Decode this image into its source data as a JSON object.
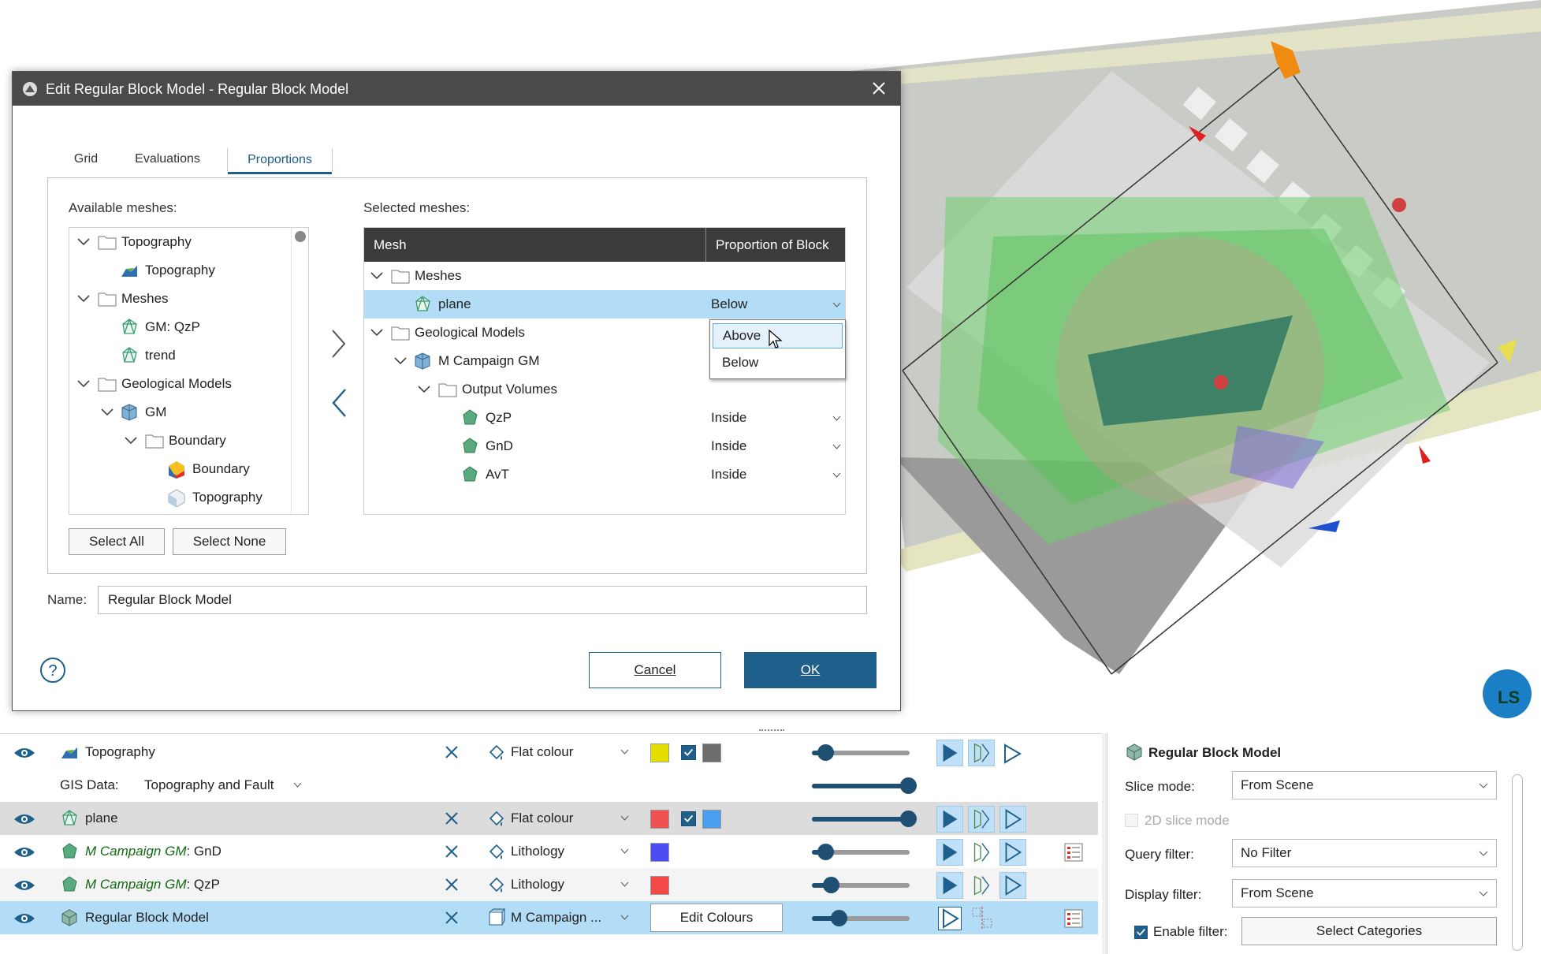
{
  "dialog": {
    "title": "Edit Regular Block Model - Regular Block Model",
    "tabs": [
      {
        "label": "Grid"
      },
      {
        "label": "Evaluations"
      },
      {
        "label": "Proportions"
      }
    ],
    "available_label": "Available meshes:",
    "available_tree": [
      {
        "label": "Topography",
        "icon": "folder-icon",
        "expanded": true
      },
      {
        "label": "Topography",
        "icon": "topography-surface-icon"
      },
      {
        "label": "Meshes",
        "icon": "folder-icon",
        "expanded": true
      },
      {
        "label": "GM: QzP",
        "icon": "mesh-icon"
      },
      {
        "label": "trend",
        "icon": "mesh-icon"
      },
      {
        "label": "Geological Models",
        "icon": "folder-icon",
        "expanded": true
      },
      {
        "label": "GM",
        "icon": "geological-model-icon",
        "expanded": true
      },
      {
        "label": "Boundary",
        "icon": "folder-icon",
        "expanded": true
      },
      {
        "label": "Boundary",
        "icon": "boundary-surface-icon"
      },
      {
        "label": "Topography",
        "icon": "topography-boundary-icon"
      }
    ],
    "select_all": "Select All",
    "select_none": "Select None",
    "selected_label": "Selected meshes:",
    "selected_header": {
      "mesh": "Mesh",
      "proportion": "Proportion of Block"
    },
    "selected_tree": [
      {
        "label": "Meshes",
        "icon": "folder-icon",
        "proportion": ""
      },
      {
        "label": "plane",
        "icon": "mesh-icon",
        "proportion": "Below"
      },
      {
        "label": "Geological Models",
        "icon": "folder-icon",
        "proportion": ""
      },
      {
        "label": "M Campaign GM",
        "icon": "geological-model-icon",
        "proportion": ""
      },
      {
        "label": "Output Volumes",
        "icon": "folder-icon",
        "proportion": ""
      },
      {
        "label": "QzP",
        "icon": "volume-icon",
        "proportion": "Inside"
      },
      {
        "label": "GnD",
        "icon": "volume-icon",
        "proportion": "Inside"
      },
      {
        "label": "AvT",
        "icon": "volume-icon",
        "proportion": "Inside"
      }
    ],
    "dropdown_options": [
      "Above",
      "Below"
    ],
    "name_label": "Name:",
    "name_value": "Regular Block Model",
    "cancel": "Cancel",
    "ok": "OK"
  },
  "shapes_list": [
    {
      "name": "Topography",
      "style": "Flat colour",
      "colour": "#e5dc00",
      "colour2": "#6d6d6d",
      "checked": true,
      "opacity": 0.14
    },
    {
      "gis_label": "GIS Data:",
      "gis_value": "Topography and Fault",
      "opacity": 1.0
    },
    {
      "name": "plane",
      "style": "Flat colour",
      "colour": "#f05252",
      "colour2": "#4a9ff0",
      "checked": true,
      "opacity": 1.0
    },
    {
      "prefix": "M Campaign GM",
      "suffix": ": GnD",
      "style": "Lithology",
      "colour": "#4c4cf5",
      "opacity": 0.14
    },
    {
      "prefix": "M Campaign GM",
      "suffix": ": QzP",
      "style": "Lithology",
      "colour": "#f24848",
      "opacity": 0.2
    },
    {
      "name": "Regular Block Model",
      "style": "M Campaign ...",
      "edit_colours": "Edit Colours",
      "opacity": 0.27
    }
  ],
  "properties": {
    "title": "Regular Block Model",
    "slice_mode_label": "Slice mode:",
    "slice_mode_value": "From Scene",
    "slice2d_label": "2D slice mode",
    "query_label": "Query filter:",
    "query_value": "No Filter",
    "display_label": "Display filter:",
    "display_value": "From Scene",
    "enable_label": "Enable filter:",
    "select_categories": "Select Categories"
  },
  "scene": {
    "badge": "LS"
  }
}
